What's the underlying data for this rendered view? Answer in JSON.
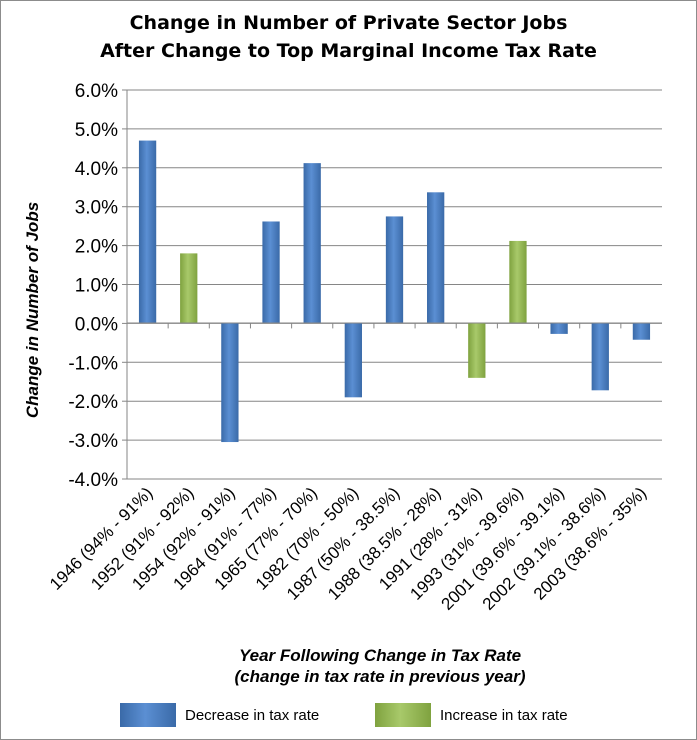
{
  "chart_data": {
    "type": "bar",
    "title": "Change in Number of Private Sector Jobs",
    "subtitle": "After Change to Top Marginal Income Tax Rate",
    "xlabel": "Year Following Change in Tax Rate",
    "xlabel_sub": "(change in tax rate in previous year)",
    "ylabel": "Change in Number of Jobs",
    "ylim": [
      -4.0,
      6.0
    ],
    "yticks": [
      "6.0%",
      "5.0%",
      "4.0%",
      "3.0%",
      "2.0%",
      "1.0%",
      "0.0%",
      "-1.0%",
      "-2.0%",
      "-3.0%",
      "-4.0%"
    ],
    "grid": true,
    "legend_position": "bottom",
    "categories": [
      "1946 (94% - 91%)",
      "1952 (91% - 92%)",
      "1954 (92% - 91%)",
      "1964 (91% - 77%)",
      "1965 (77% - 70%)",
      "1982 (70% - 50%)",
      "1987 (50% - 38.5%)",
      "1988 (38.5% - 28%)",
      "1991 (28% - 31%)",
      "1993 (31% - 39.6%)",
      "2001 (39.6% - 39.1%)",
      "2002 (39.1% - 38.6%)",
      "2003 (38.6% - 35%)"
    ],
    "values": [
      4.7,
      1.8,
      -3.05,
      2.62,
      4.12,
      -1.9,
      2.75,
      3.37,
      -1.4,
      2.12,
      -0.27,
      -1.72,
      -0.42
    ],
    "groups": [
      "decrease",
      "increase",
      "decrease",
      "decrease",
      "decrease",
      "decrease",
      "decrease",
      "decrease",
      "increase",
      "increase",
      "decrease",
      "decrease",
      "decrease"
    ],
    "series": [
      {
        "name": "Decrease in tax rate",
        "key": "decrease",
        "color": "#4a7ebb"
      },
      {
        "name": "Increase  in tax rate",
        "key": "increase",
        "color": "#98b954"
      }
    ]
  }
}
